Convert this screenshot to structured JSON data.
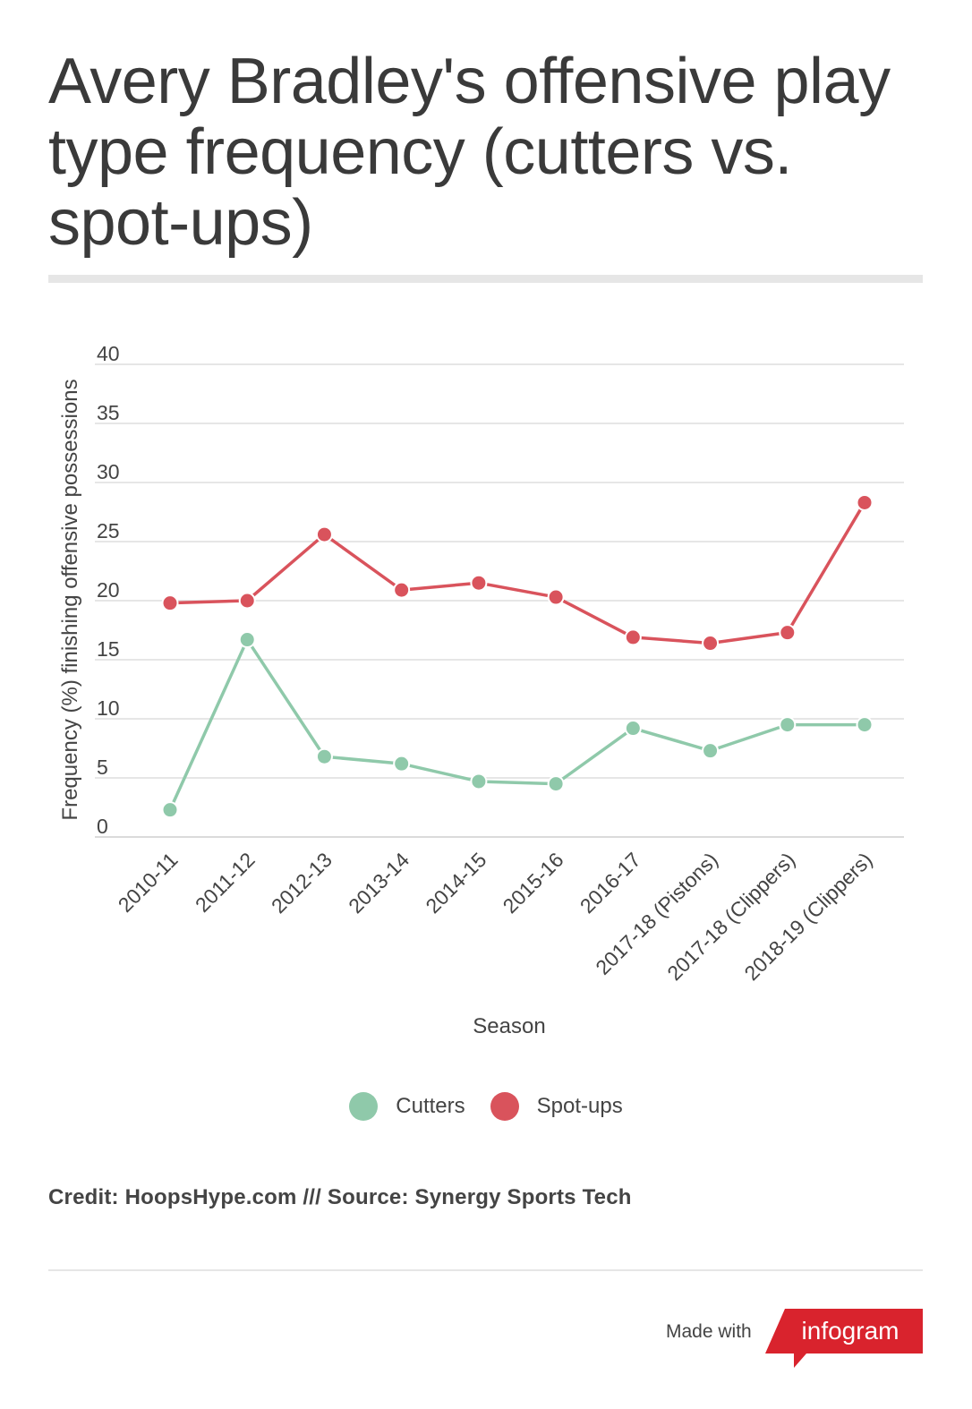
{
  "title": "Avery Bradley's offensive play type frequency (cutters vs. spot-ups)",
  "credit": "Credit: HoopsHype.com /// Source: Synergy Sports Tech",
  "footer": {
    "made_with": "Made with",
    "brand": "infogram"
  },
  "colors": {
    "cutters": "#8fc9aa",
    "spot_ups": "#d9535c",
    "brand": "#d9232d"
  },
  "chart_data": {
    "type": "line",
    "xlabel": "Season",
    "ylabel": "Frequency (%) finishing offensive possessions",
    "ylim": [
      0,
      40
    ],
    "yticks": [
      0,
      5,
      10,
      15,
      20,
      25,
      30,
      35,
      40
    ],
    "grid": true,
    "legend_position": "bottom",
    "categories": [
      "2010-11",
      "2011-12",
      "2012-13",
      "2013-14",
      "2014-15",
      "2015-16",
      "2016-17",
      "2017-18 (Pistons)",
      "2017-18 (Clippers)",
      "2018-19 (Clippers)"
    ],
    "series": [
      {
        "name": "Cutters",
        "color": "#8fc9aa",
        "values": [
          2.3,
          16.7,
          6.8,
          6.2,
          4.7,
          4.5,
          9.2,
          7.3,
          9.5,
          9.5
        ]
      },
      {
        "name": "Spot-ups",
        "color": "#d9535c",
        "values": [
          19.8,
          20.0,
          25.6,
          20.9,
          21.5,
          20.3,
          16.9,
          16.4,
          17.3,
          28.3
        ]
      }
    ]
  }
}
